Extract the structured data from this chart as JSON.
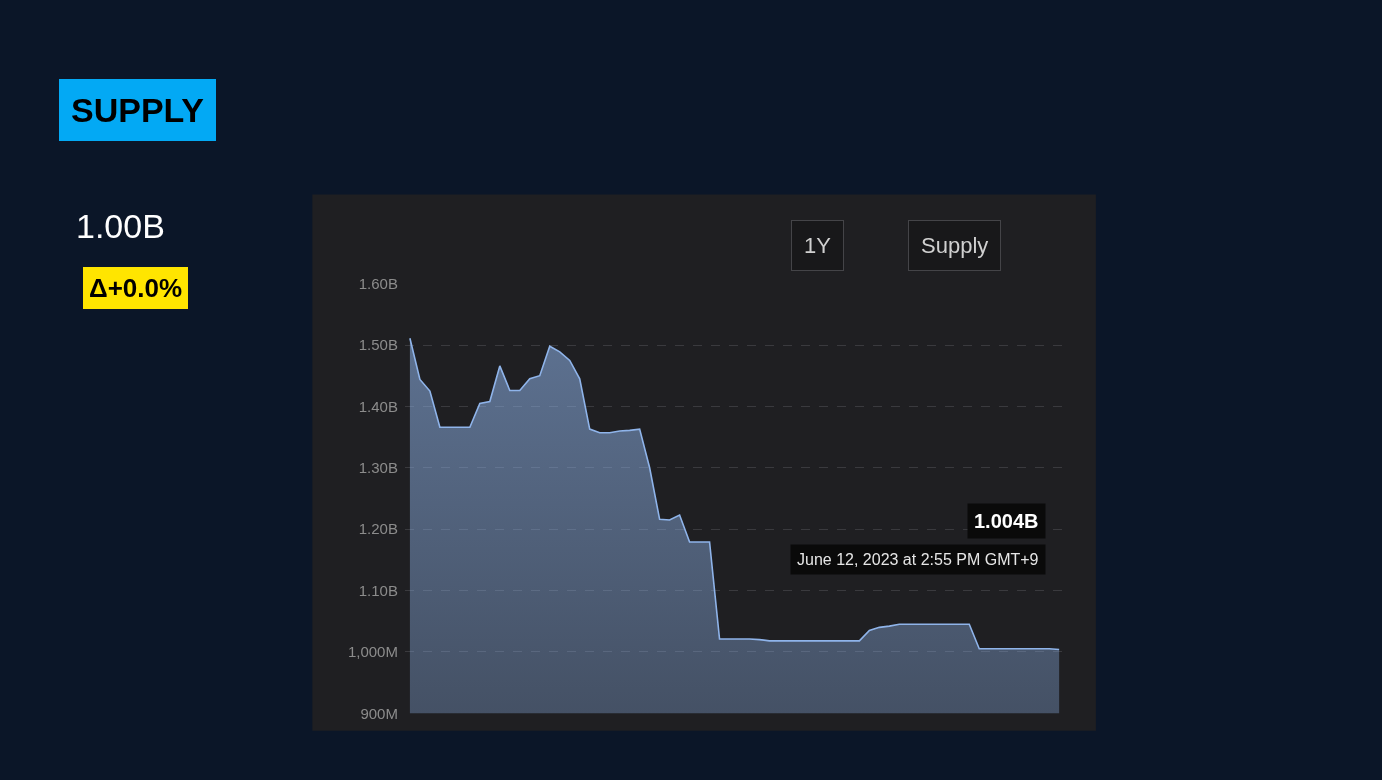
{
  "chart_data": {
    "type": "area",
    "categories": [
      null,
      null,
      null,
      null,
      null,
      null,
      null,
      null,
      null,
      null,
      null,
      null,
      null,
      null,
      null,
      null,
      null,
      null,
      null,
      null,
      null,
      null,
      null,
      null,
      null,
      null,
      null,
      null,
      null,
      null,
      null,
      null,
      null,
      null,
      null,
      null,
      null,
      null,
      null,
      null,
      null,
      null,
      null,
      null,
      null,
      null,
      null,
      null,
      null,
      null,
      null,
      null,
      null,
      null,
      null,
      null,
      null,
      null,
      null,
      null,
      null,
      null,
      null,
      null,
      null,
      null
    ],
    "series": [
      {
        "color": "#8fb4ea",
        "values": [
          1511000000,
          1444000000,
          1425000000,
          1366000000,
          1366000000,
          1366000000,
          1366000000,
          1405000000,
          1408000000,
          1466000000,
          1426000000,
          1426000000,
          1445000000,
          1450000000,
          1498000000,
          1489000000,
          1475000000,
          1445000000,
          1363000000,
          1357000000,
          1357000000,
          1360000000,
          1361000000,
          1363000000,
          1300000000,
          1216000000,
          1215000000,
          1223000000,
          1179000000,
          1179000000,
          1179000000,
          1021000000,
          1021000000,
          1021000000,
          1021000000,
          1020000000,
          1018000000,
          1018000000,
          1018000000,
          1018000000,
          1018000000,
          1018000000,
          1018000000,
          1018000000,
          1018000000,
          1018000000,
          1035000000,
          1040000000,
          1042000000,
          1045000000,
          1045000000,
          1045000000,
          1045000000,
          1045000000,
          1045000000,
          1045000000,
          1045000000,
          1005000000,
          1005000000,
          1005000000,
          1005000000,
          1005000000,
          1005000000,
          1005000000,
          1005000000,
          1004000000
        ]
      }
    ],
    "ylim": [
      900000000,
      1600000000
    ],
    "yticks": [
      {
        "value": 900000000,
        "label": "900M"
      },
      {
        "value": 1000000000,
        "label": "1,000M"
      },
      {
        "value": 1100000000,
        "label": "1.10B"
      },
      {
        "value": 1200000000,
        "label": "1.20B"
      },
      {
        "value": 1300000000,
        "label": "1.30B"
      },
      {
        "value": 1400000000,
        "label": "1.40B"
      },
      {
        "value": 1500000000,
        "label": "1.50B"
      },
      {
        "value": 1600000000,
        "label": "1.60B"
      }
    ],
    "grid": "y",
    "marker": "none",
    "line_style": "solid",
    "annotations": [
      "SUPPLY",
      "1.00B",
      "Δ+0.0%",
      "1Y",
      "Supply",
      "1.004B",
      "June 12, 2023 at 2:55 PM GMT+9"
    ]
  }
}
